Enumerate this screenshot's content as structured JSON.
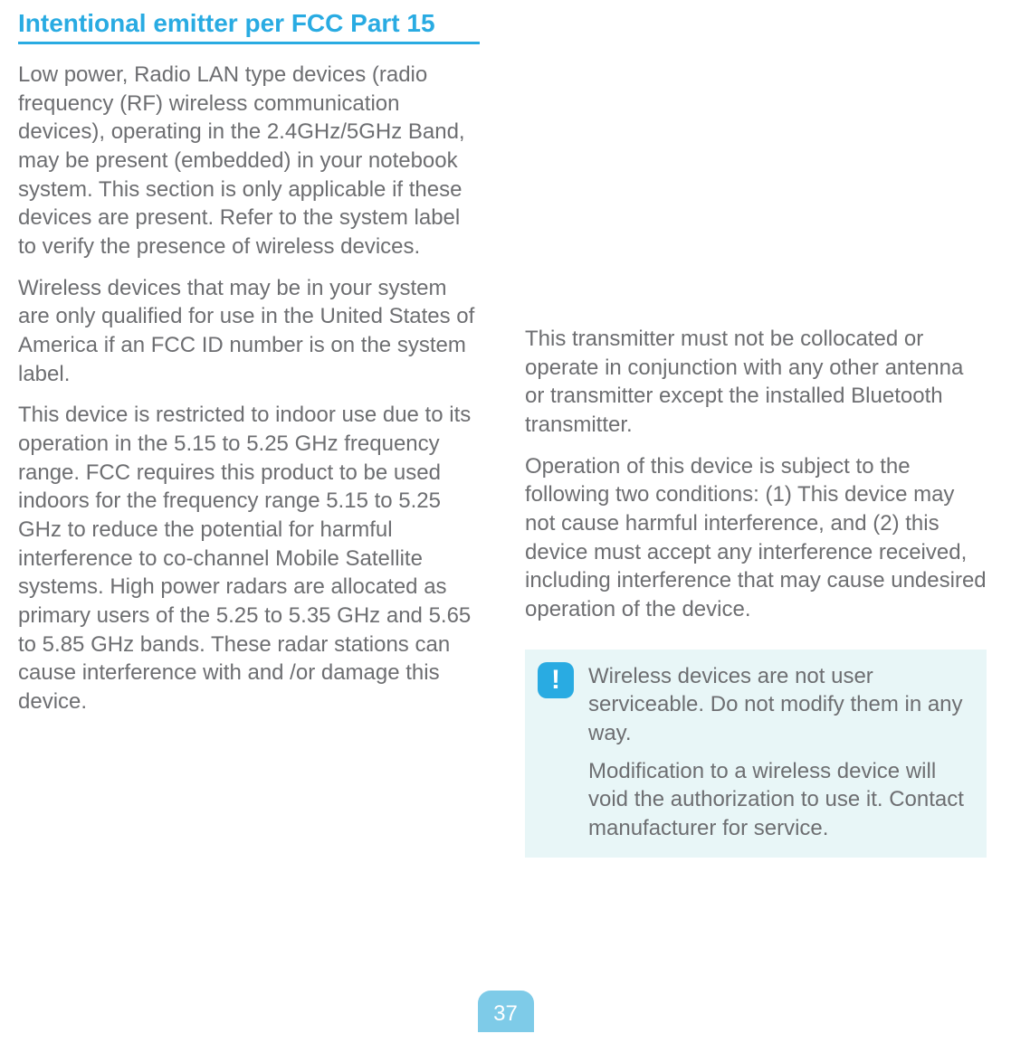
{
  "heading": "Intentional emitter per FCC Part 15",
  "left": {
    "p1": "Low power, Radio LAN type devices (radio frequency (RF) wireless communication devices), operating in the 2.4GHz/5GHz Band, may be present (embedded) in your notebook system. This section is only applicable if these devices are present. Refer to the system label to verify the presence of wireless devices.",
    "p2": "Wireless devices that may be in your system are only qualified for use in the United States of America if an FCC ID number is on the system label.",
    "p3": "This device is restricted to indoor use due to its operation in the 5.15 to 5.25 GHz frequency range. FCC requires this product to be used indoors for the frequency range 5.15 to 5.25 GHz to reduce the potential for harmful interference to co-channel Mobile Satellite systems. High power radars are allocated as primary users of the 5.25 to 5.35 GHz and 5.65 to 5.85 GHz bands. These radar stations can cause interference with and /or damage this device."
  },
  "right": {
    "p1": "This transmitter must not be collocated or operate in conjunction with any other antenna or transmitter except the installed Bluetooth transmitter.",
    "p2": "Operation of this device is subject to the following two conditions: (1) This device may not cause harmful interference, and (2) this device must accept any interference received, including interference that may cause undesired operation of the device."
  },
  "callout": {
    "icon_glyph": "!",
    "p1": "Wireless devices are not user serviceable. Do not modify them in any way.",
    "p2": "Modification to a wireless device will void the authorization to use it. Contact manufacturer for service."
  },
  "page_number": "37",
  "colors": {
    "accent": "#29abe2",
    "body_text": "#6d6e71",
    "callout_bg": "#e8f6f7",
    "page_num_bg": "#7ecbe8",
    "white": "#ffffff"
  }
}
